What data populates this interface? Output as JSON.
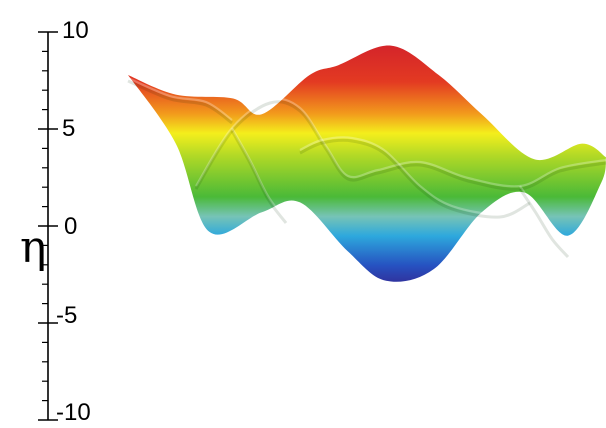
{
  "chart_data": {
    "type": "surface",
    "ylabel": "η",
    "ylim": [
      -10,
      10
    ],
    "tick_labels": [
      "10",
      "5",
      "0",
      "-5",
      "-10"
    ],
    "colormap": [
      "#3b2aa3",
      "#2a5bd6",
      "#31b6ef",
      "#7ed0c2",
      "#4ec23a",
      "#b5dc26",
      "#f4ee1c",
      "#f29a1c",
      "#e33a22",
      "#d4242a"
    ],
    "surface": {
      "max_eta": 9,
      "min_eta": -3,
      "profile_back": [
        {
          "x": 0.0,
          "eta": 7.5
        },
        {
          "x": 0.1,
          "eta": 6.5
        },
        {
          "x": 0.22,
          "eta": 6.3
        },
        {
          "x": 0.28,
          "eta": 5.5
        },
        {
          "x": 0.38,
          "eta": 7.5
        },
        {
          "x": 0.44,
          "eta": 8.0
        },
        {
          "x": 0.55,
          "eta": 9.0
        },
        {
          "x": 0.65,
          "eta": 7.5
        },
        {
          "x": 0.74,
          "eta": 5.5
        },
        {
          "x": 0.85,
          "eta": 3.2
        },
        {
          "x": 0.95,
          "eta": 4.0
        },
        {
          "x": 1.0,
          "eta": 3.3
        }
      ],
      "profile_front": [
        {
          "x": 0.0,
          "eta": 7.5
        },
        {
          "x": 0.1,
          "eta": 4.0
        },
        {
          "x": 0.17,
          "eta": -0.5
        },
        {
          "x": 0.28,
          "eta": 0.5
        },
        {
          "x": 0.36,
          "eta": 1.0
        },
        {
          "x": 0.46,
          "eta": -1.5
        },
        {
          "x": 0.54,
          "eta": -3.0
        },
        {
          "x": 0.64,
          "eta": -2.4
        },
        {
          "x": 0.74,
          "eta": 0.5
        },
        {
          "x": 0.83,
          "eta": 1.5
        },
        {
          "x": 0.92,
          "eta": -0.7
        },
        {
          "x": 0.99,
          "eta": 2.0
        },
        {
          "x": 1.0,
          "eta": 3.3
        }
      ]
    }
  }
}
